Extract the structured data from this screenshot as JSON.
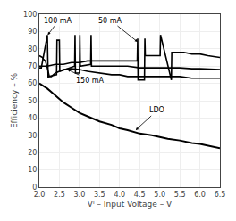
{
  "chart_data": {
    "type": "line",
    "xlabel": "Vᴵ – Input Voltage – V",
    "ylabel": "Efficiency – %",
    "xlim": [
      2,
      6.5
    ],
    "ylim": [
      0,
      100
    ],
    "xticks": [
      {
        "value": 2,
        "label": "2.0"
      },
      {
        "value": 2.5,
        "label": "2.5"
      },
      {
        "value": 3,
        "label": "3.0"
      },
      {
        "value": 3.5,
        "label": "3.5"
      },
      {
        "value": 4,
        "label": "4.0"
      },
      {
        "value": 4.5,
        "label": "4.5"
      },
      {
        "value": 5,
        "label": "5.0"
      },
      {
        "value": 5.5,
        "label": "5.5"
      },
      {
        "value": 6,
        "label": "6.0"
      },
      {
        "value": 6.5,
        "label": "6.5"
      }
    ],
    "yticks": [
      0,
      10,
      20,
      30,
      40,
      50,
      60,
      70,
      80,
      90,
      100
    ],
    "grid": true,
    "color": "#000000",
    "series": [
      {
        "x": [
          2.0,
          2.1,
          2.2,
          2.3,
          2.4,
          2.5,
          2.6,
          2.8,
          3.0,
          3.2,
          3.5,
          3.8,
          4.0,
          4.2,
          4.5,
          4.8,
          5.0,
          5.2,
          5.5,
          5.8,
          6.0,
          6.2,
          6.5
        ],
        "values": [
          60,
          58.5,
          57,
          55,
          53,
          51,
          49,
          46,
          43,
          41,
          38,
          36,
          34,
          33,
          31,
          30,
          29,
          28,
          27,
          25.5,
          25,
          24,
          22.5
        ]
      },
      {
        "x": [
          2.0,
          2.08,
          2.1,
          2.15,
          2.2,
          2.25,
          2.3,
          2.4,
          2.5,
          2.6,
          2.8,
          3.0,
          3.2,
          3.5,
          3.8,
          4.0,
          4.2,
          4.5,
          4.8,
          5.0,
          5.2,
          5.5,
          5.8,
          6.0,
          6.5
        ],
        "values": [
          76,
          75,
          74,
          73,
          69,
          64,
          64,
          66,
          67,
          68,
          68.5,
          68,
          67,
          66,
          65,
          65,
          64,
          64,
          64,
          64,
          64,
          64,
          63,
          63,
          63
        ]
      },
      {
        "x": [
          2.0,
          2.04,
          2.05,
          2.2,
          2.21,
          2.22,
          2.23,
          2.43,
          2.44,
          2.45,
          2.5,
          2.51,
          2.52,
          2.88,
          2.89,
          2.9,
          2.91,
          3.0,
          3.01,
          3.02,
          3.28,
          3.29,
          3.3,
          3.5,
          3.6,
          3.8,
          4.0,
          4.2,
          4.5,
          4.8,
          5.0,
          5.2,
          5.5,
          5.8,
          6.0,
          6.5
        ],
        "values": [
          69,
          69,
          69,
          88,
          63,
          63,
          64,
          65,
          85,
          85,
          85,
          67,
          67,
          70,
          88,
          66,
          66,
          66,
          88,
          70,
          71,
          88,
          70,
          70,
          70,
          70,
          70,
          70,
          69,
          69,
          69,
          69,
          69,
          68.5,
          68.5,
          68
        ]
      },
      {
        "x": [
          2.0,
          2.04,
          2.05,
          2.1,
          2.2,
          2.4,
          2.6,
          2.8,
          3.0,
          3.2,
          3.5,
          3.8,
          4.0,
          4.2,
          4.44,
          4.45,
          4.46,
          4.62,
          4.63,
          4.64,
          5.0,
          5.01,
          5.02,
          5.28,
          5.29,
          5.3,
          5.6,
          5.8,
          6.0,
          6.2,
          6.5
        ],
        "values": [
          70,
          70,
          70,
          70,
          70,
          71,
          71,
          72,
          72,
          73,
          73,
          73,
          73,
          73,
          73,
          86,
          62,
          62,
          86,
          76,
          76,
          76,
          88,
          62,
          62,
          78,
          78,
          77,
          77,
          76,
          75
        ]
      }
    ],
    "annotations": [
      {
        "text": "100 mA",
        "x": 2.21,
        "y": 88
      },
      {
        "text": "50 mA",
        "x": 4.45,
        "y": 84
      },
      {
        "text": "150 mA",
        "x": 2.7,
        "y": 68
      },
      {
        "text": "LDO",
        "x": 4.4,
        "y": 33
      }
    ]
  }
}
